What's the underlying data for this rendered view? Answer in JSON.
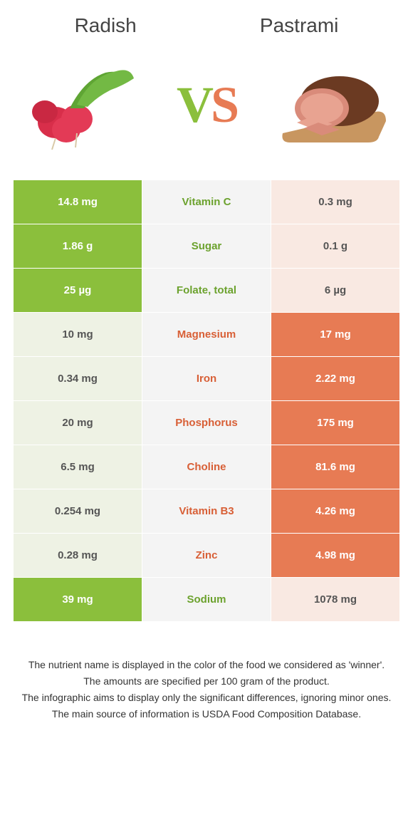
{
  "colors": {
    "green": "#8bbf3c",
    "orange": "#e77b54",
    "green_light": "#eef2e4",
    "orange_light": "#f9e9e2",
    "green_text": "#6ca22e",
    "orange_text": "#d85f36"
  },
  "header": {
    "left": "Radish",
    "right": "Pastrami",
    "vs_v": "V",
    "vs_s": "S"
  },
  "rows": [
    {
      "left": "14.8 mg",
      "name": "Vitamin C",
      "right": "0.3 mg",
      "winner": "left"
    },
    {
      "left": "1.86 g",
      "name": "Sugar",
      "right": "0.1 g",
      "winner": "left"
    },
    {
      "left": "25 µg",
      "name": "Folate, total",
      "right": "6 µg",
      "winner": "left"
    },
    {
      "left": "10 mg",
      "name": "Magnesium",
      "right": "17 mg",
      "winner": "right"
    },
    {
      "left": "0.34 mg",
      "name": "Iron",
      "right": "2.22 mg",
      "winner": "right"
    },
    {
      "left": "20 mg",
      "name": "Phosphorus",
      "right": "175 mg",
      "winner": "right"
    },
    {
      "left": "6.5 mg",
      "name": "Choline",
      "right": "81.6 mg",
      "winner": "right"
    },
    {
      "left": "0.254 mg",
      "name": "Vitamin B3",
      "right": "4.26 mg",
      "winner": "right"
    },
    {
      "left": "0.28 mg",
      "name": "Zinc",
      "right": "4.98 mg",
      "winner": "right"
    },
    {
      "left": "39 mg",
      "name": "Sodium",
      "right": "1078 mg",
      "winner": "left"
    }
  ],
  "footnotes": [
    "The nutrient name is displayed in the color of the food we considered as 'winner'.",
    "The amounts are specified per 100 gram of the product.",
    "The infographic aims to display only the significant differences, ignoring minor ones.",
    "The main source of information is USDA Food Composition Database."
  ]
}
